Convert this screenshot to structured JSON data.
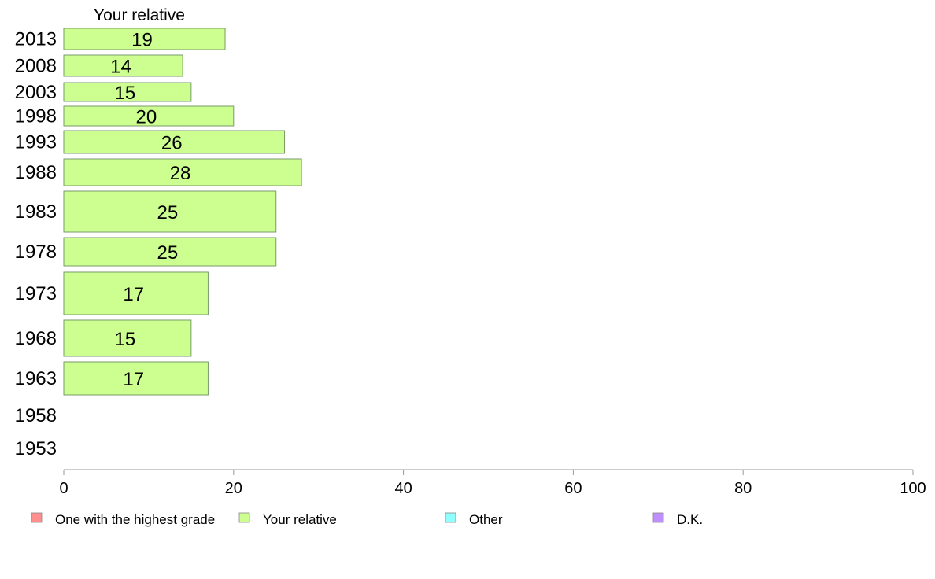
{
  "chart_data": {
    "type": "bar",
    "orientation": "horizontal",
    "series_title": "Your relative",
    "categories": [
      "2013",
      "2008",
      "2003",
      "1998",
      "1993",
      "1988",
      "1983",
      "1978",
      "1973",
      "1968",
      "1963",
      "1958",
      "1953"
    ],
    "series": [
      {
        "name": "Your relative",
        "values": [
          19,
          14,
          15,
          20,
          26,
          28,
          25,
          25,
          17,
          15,
          17,
          null,
          null
        ]
      }
    ],
    "xlim": [
      0,
      100
    ],
    "xticks": [
      "0",
      "20",
      "40",
      "60",
      "80",
      "100"
    ],
    "legend": [
      {
        "label": "One with the highest grade",
        "color": "#ff8f8f"
      },
      {
        "label": "Your relative",
        "color": "#ccff8f"
      },
      {
        "label": "Other",
        "color": "#8fffff"
      },
      {
        "label": "D.K.",
        "color": "#c08fff"
      }
    ],
    "legend_position": "bottom",
    "grid": false,
    "bar_color": "#ccff8f"
  }
}
